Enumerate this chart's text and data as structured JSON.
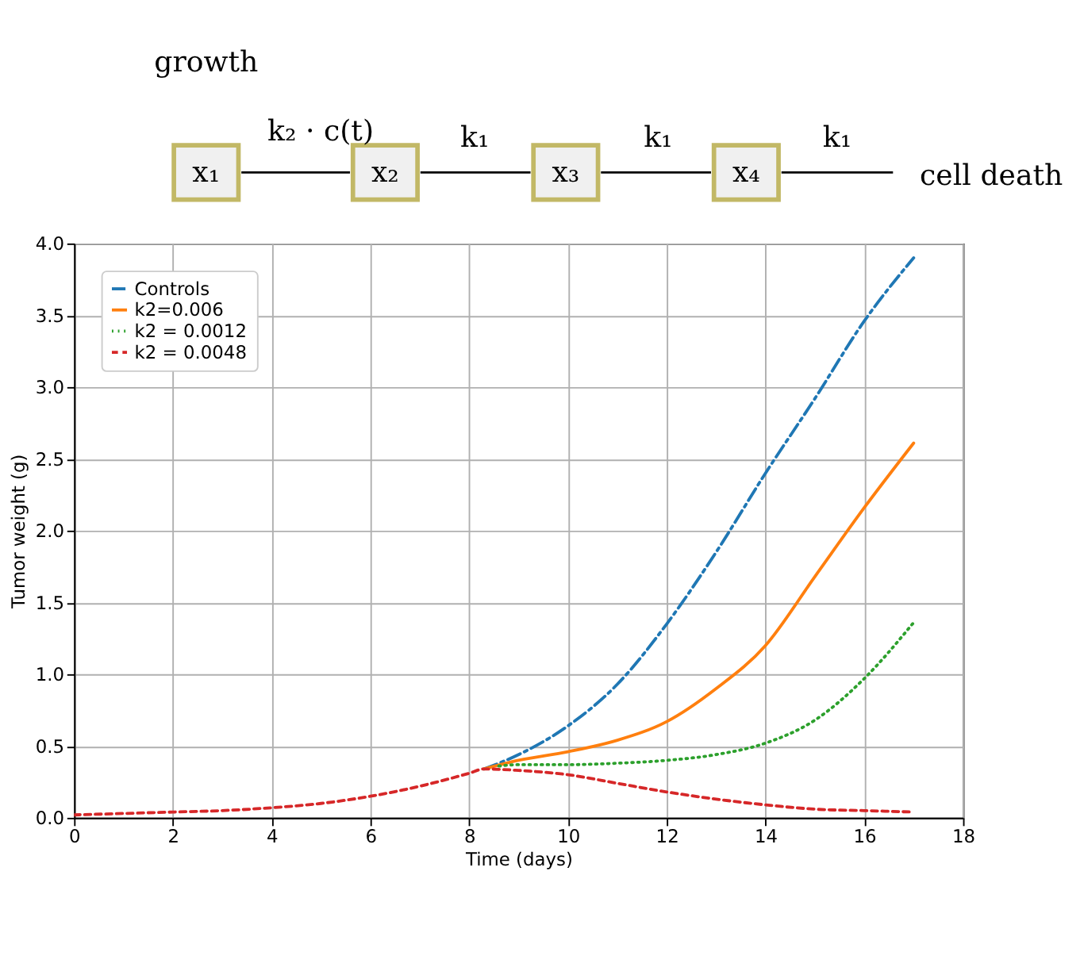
{
  "chart_data": [
    {
      "type": "other",
      "annotations": [
        "growth",
        "x₁",
        "k₂ · c(t)",
        "x₂",
        "k₁",
        "x₃",
        "k₁",
        "x₄",
        "k₁",
        "cell death"
      ]
    },
    {
      "type": "line",
      "xlabel": "Time (days)",
      "ylabel": "Tumor weight (g)",
      "xlim": [
        0,
        18
      ],
      "xticks": [
        0,
        2,
        4,
        6,
        8,
        10,
        12,
        14,
        16,
        18
      ],
      "ylim": [
        0,
        4.0
      ],
      "yticks": [
        {
          "value": 0,
          "label": "0.0"
        },
        0.5,
        {
          "value": 1,
          "label": "1.0"
        },
        1.5,
        {
          "value": 2,
          "label": "2.0"
        },
        2.5,
        {
          "value": 3,
          "label": "3.0"
        },
        3.5,
        {
          "value": 4,
          "label": "4.0"
        }
      ],
      "grid": true,
      "legend": "top left",
      "marker": "none",
      "series": [
        {
          "name": "Controls",
          "color": "#1f77b4",
          "line_style": "dashdot",
          "x": [
            8.3,
            9,
            10,
            11,
            12,
            13,
            14,
            15,
            16,
            17
          ],
          "values": [
            0.34,
            0.44,
            0.64,
            0.93,
            1.35,
            1.85,
            2.4,
            2.92,
            3.46,
            3.9
          ]
        },
        {
          "name": "k2=0.006",
          "color": "#ff7f0e",
          "line_style": "solid",
          "x": [
            8.3,
            9,
            10,
            11,
            12,
            13,
            14,
            15,
            16,
            17
          ],
          "values": [
            0.34,
            0.4,
            0.46,
            0.54,
            0.67,
            0.9,
            1.2,
            1.68,
            2.16,
            2.61
          ]
        },
        {
          "name": "k2 = 0.0012",
          "color": "#2ca02c",
          "line_style": "dotted",
          "x": [
            8.6,
            9,
            10,
            11,
            12,
            13,
            14,
            15,
            16,
            17
          ],
          "values": [
            0.36,
            0.37,
            0.37,
            0.38,
            0.4,
            0.44,
            0.52,
            0.68,
            0.97,
            1.36
          ]
        },
        {
          "name": "k2 = 0.0048",
          "color": "#d62728",
          "line_style": "dashed",
          "x": [
            0,
            1,
            2,
            3,
            4,
            5,
            6,
            7,
            8,
            8.3,
            9,
            10,
            11,
            12,
            13,
            14,
            15,
            16,
            17
          ],
          "values": [
            0.02,
            0.03,
            0.04,
            0.05,
            0.07,
            0.1,
            0.15,
            0.22,
            0.31,
            0.34,
            0.33,
            0.3,
            0.24,
            0.18,
            0.13,
            0.09,
            0.06,
            0.05,
            0.04
          ]
        }
      ]
    }
  ]
}
